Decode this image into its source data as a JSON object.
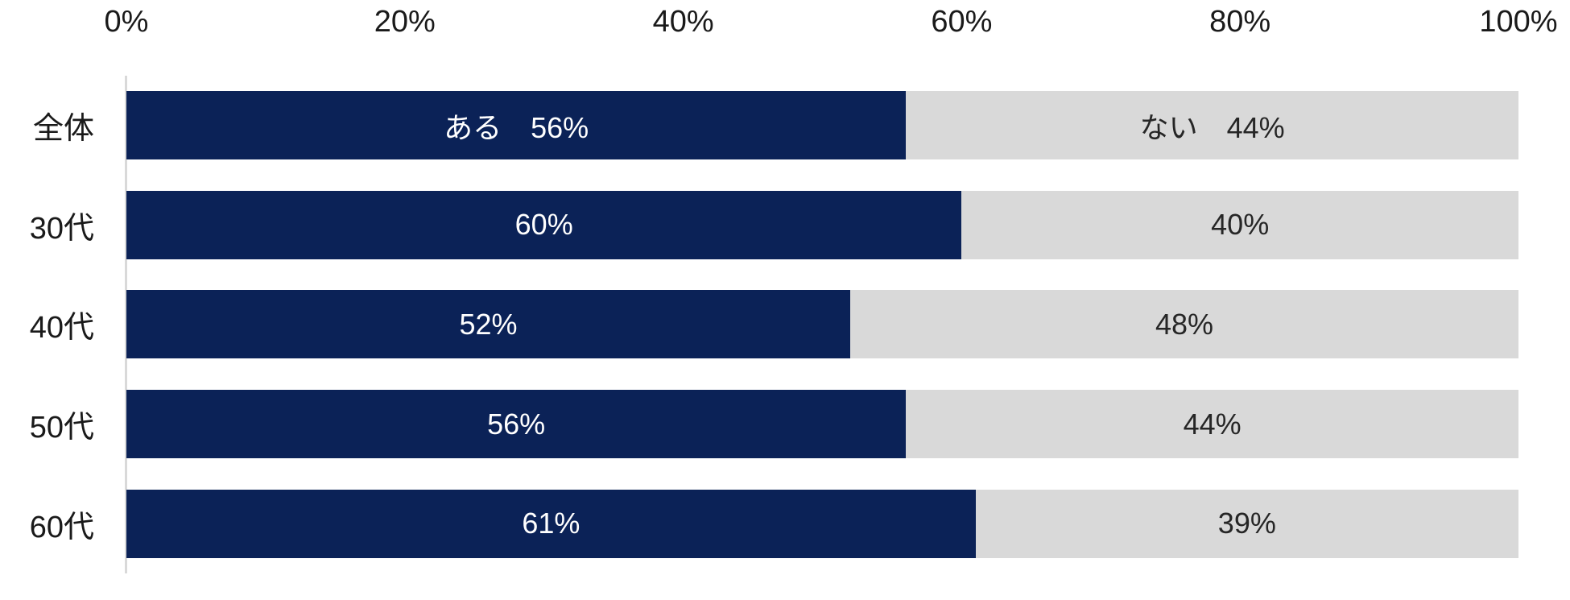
{
  "chart_data": {
    "type": "bar",
    "subtype": "horizontal-stacked",
    "title": "",
    "categories": [
      "全体",
      "30代",
      "40代",
      "50代",
      "60代"
    ],
    "series": [
      {
        "name": "ある",
        "color": "#0b2257",
        "values": [
          56,
          60,
          52,
          56,
          61
        ]
      },
      {
        "name": "ない",
        "color": "#d9d9d9",
        "values": [
          44,
          40,
          48,
          44,
          39
        ]
      }
    ],
    "bar_labels": [
      [
        "ある　56%",
        "ない　44%"
      ],
      [
        "60%",
        "40%"
      ],
      [
        "52%",
        "48%"
      ],
      [
        "56%",
        "44%"
      ],
      [
        "61%",
        "39%"
      ]
    ],
    "x_axis": {
      "position": "top",
      "min": 0,
      "max": 100,
      "tick_step": 20,
      "ticks": [
        "0%",
        "20%",
        "40%",
        "60%",
        "80%",
        "100%"
      ],
      "tick_positions": [
        0,
        20,
        40,
        60,
        80,
        100
      ]
    },
    "grid": false,
    "legend": "none",
    "colors": {
      "series_aru": "#0b2257",
      "series_nai": "#d9d9d9",
      "axis_line": "#d9d9d9",
      "axis_text": "#1a1a1a",
      "label_on_dark": "#ffffff",
      "label_on_light": "#262626",
      "background": "#ffffff"
    }
  }
}
